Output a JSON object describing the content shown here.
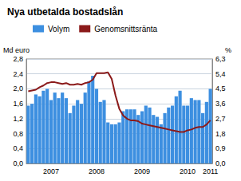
{
  "chart_data": {
    "type": "bar",
    "title": "Nya utbetalda bostadslån",
    "ylabel": "Md euro",
    "y2label": "%",
    "categories": [
      null,
      null,
      null,
      null,
      null,
      null,
      "2007",
      null,
      null,
      null,
      null,
      null,
      null,
      null,
      null,
      null,
      null,
      null,
      "2008",
      null,
      null,
      null,
      null,
      null,
      null,
      null,
      null,
      null,
      null,
      null,
      "2009",
      null,
      null,
      null,
      null,
      null,
      null,
      null,
      null,
      null,
      null,
      null,
      "2010",
      null,
      null,
      null,
      null,
      null,
      "2011"
    ],
    "series": [
      {
        "name": "Volym",
        "type": "bar",
        "color": "#3d8fe0",
        "values": [
          1.55,
          1.6,
          1.85,
          1.8,
          1.95,
          2.0,
          1.7,
          1.9,
          1.75,
          1.9,
          1.75,
          1.35,
          1.55,
          1.7,
          1.6,
          1.9,
          2.2,
          2.35,
          2.0,
          1.65,
          1.7,
          1.1,
          1.05,
          1.05,
          1.1,
          1.4,
          1.45,
          1.45,
          1.45,
          1.3,
          1.4,
          1.55,
          1.5,
          1.3,
          1.25,
          1.05,
          1.35,
          1.5,
          1.55,
          1.8,
          1.95,
          1.55,
          1.55,
          1.75,
          1.7,
          1.7,
          1.35,
          1.65,
          2.0
        ]
      },
      {
        "name": "Genomsnittsränta",
        "type": "line",
        "axis": "y2",
        "color": "#8b1a1a",
        "values": [
          4.35,
          4.4,
          4.45,
          4.6,
          4.7,
          4.85,
          4.9,
          4.9,
          4.85,
          4.8,
          4.85,
          4.75,
          4.75,
          4.8,
          4.75,
          4.85,
          4.9,
          5.05,
          5.45,
          5.45,
          5.45,
          5.5,
          5.1,
          4.1,
          3.3,
          2.9,
          2.7,
          2.6,
          2.6,
          2.55,
          2.4,
          2.35,
          2.3,
          2.25,
          2.2,
          2.15,
          2.1,
          2.05,
          2.0,
          1.95,
          1.9,
          1.9,
          2.0,
          2.05,
          2.15,
          2.2,
          2.2,
          2.35,
          2.6
        ]
      }
    ],
    "ylim": [
      0,
      2.8
    ],
    "yticks": [
      {
        "value": 0,
        "label": "0,0"
      },
      {
        "value": 0.4,
        "label": "0,4"
      },
      {
        "value": 0.8,
        "label": "0,8"
      },
      {
        "value": 1.2,
        "label": "1,2"
      },
      {
        "value": 1.6,
        "label": "1,6"
      },
      {
        "value": 2.0,
        "label": "2,0"
      },
      {
        "value": 2.4,
        "label": "2,4"
      },
      {
        "value": 2.8,
        "label": "2,8"
      }
    ],
    "y2lim": [
      0,
      6.3
    ],
    "y2ticks": [
      {
        "value": 0,
        "label": "0,0"
      },
      {
        "value": 0.9,
        "label": "0,9"
      },
      {
        "value": 1.8,
        "label": "1,8"
      },
      {
        "value": 2.7,
        "label": "2,7"
      },
      {
        "value": 3.6,
        "label": "3,6"
      },
      {
        "value": 4.5,
        "label": "4,5"
      },
      {
        "value": 5.4,
        "label": "5,4"
      },
      {
        "value": 6.3,
        "label": "6,3"
      }
    ],
    "grid": true,
    "legend": "top"
  }
}
